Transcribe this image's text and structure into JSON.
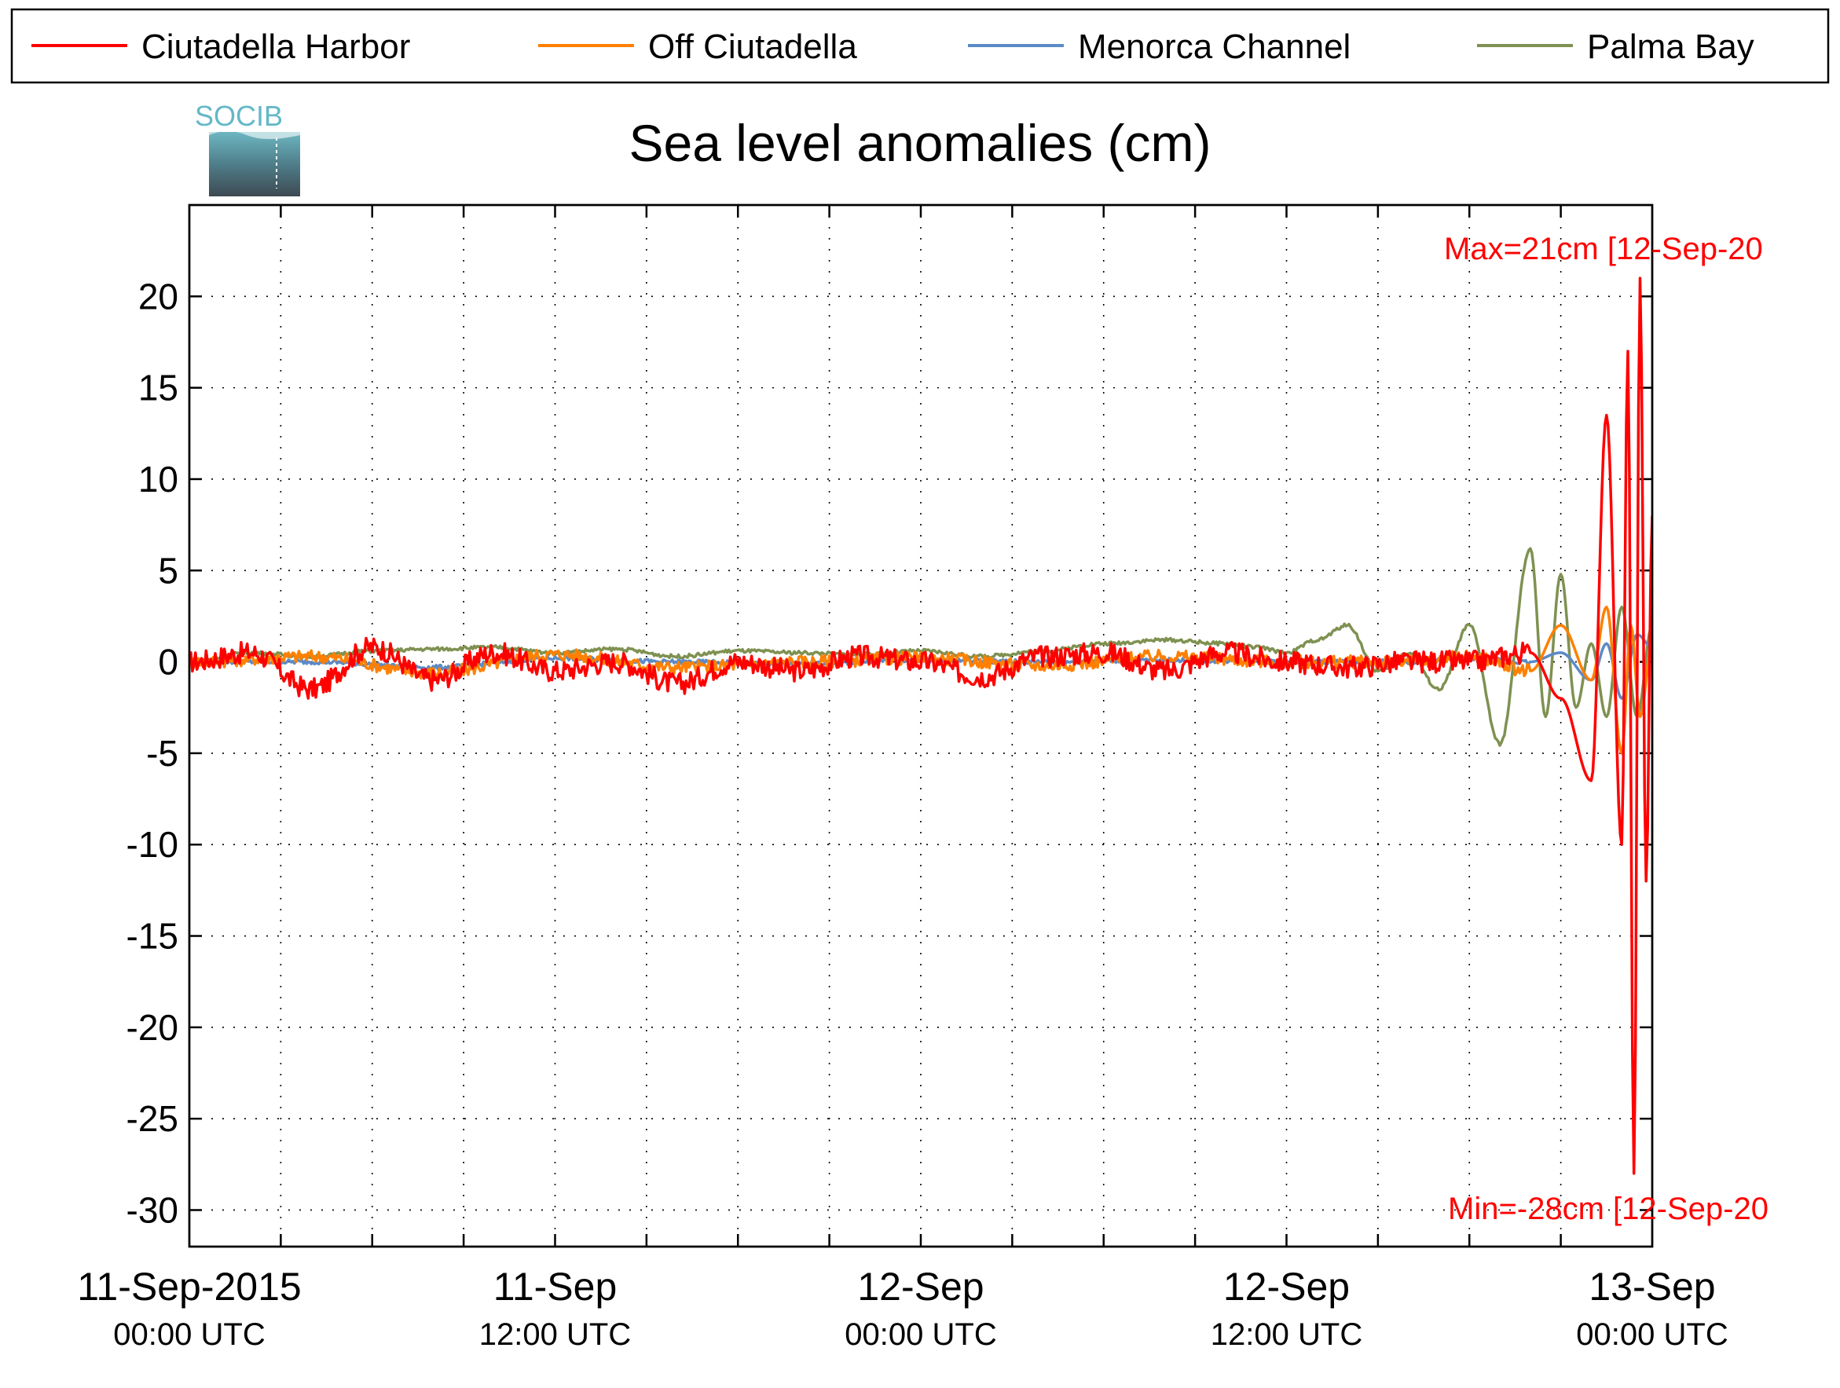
{
  "chart_data": {
    "type": "line",
    "title": "Sea level anomalies (cm)",
    "xlabel": "",
    "ylabel": "",
    "ylim": [
      -32,
      25
    ],
    "yticks": [
      20,
      15,
      10,
      5,
      0,
      -5,
      -10,
      -15,
      -20,
      -25,
      -30
    ],
    "ytick_labels": [
      "20",
      "15",
      "10",
      "5",
      "0",
      "-5",
      "-10",
      "-15",
      "-20",
      "-25",
      "-30"
    ],
    "x_unit": "hours since 11-Sep-2015 00:00 UTC",
    "xlim": [
      0,
      48
    ],
    "xticks": [
      {
        "main": "11-Sep-2015",
        "sub": "00:00 UTC"
      },
      {
        "main": "11-Sep",
        "sub": "12:00 UTC"
      },
      {
        "main": "12-Sep",
        "sub": "00:00 UTC"
      },
      {
        "main": "12-Sep",
        "sub": "12:00 UTC"
      },
      {
        "main": "13-Sep",
        "sub": "00:00 UTC"
      }
    ],
    "grid": true,
    "legend_position": "top",
    "series": [
      {
        "name": "Ciutadella Harbor",
        "color": "#ff0000",
        "x": [
          0,
          2,
          4,
          6,
          8,
          10,
          12,
          14,
          16,
          18,
          20,
          22,
          24,
          26,
          28,
          30,
          32,
          34,
          36,
          38,
          40,
          42,
          44,
          45,
          46,
          46.5,
          47,
          47.2,
          47.4,
          47.6,
          47.8,
          48
        ],
        "y": [
          0,
          0.5,
          -1.5,
          0.8,
          -1,
          0.5,
          -0.5,
          0,
          -1.2,
          0,
          -0.5,
          0.3,
          0,
          -0.8,
          0.3,
          0.5,
          -0.5,
          0.5,
          0,
          -0.3,
          0,
          0,
          0.5,
          -2,
          -6.5,
          13.5,
          -10,
          17,
          -28,
          21,
          -12,
          8
        ]
      },
      {
        "name": "Off Ciutadella",
        "color": "#ff8000",
        "x": [
          0,
          4,
          8,
          12,
          16,
          20,
          24,
          28,
          32,
          36,
          40,
          42,
          44,
          45,
          46,
          46.5,
          47,
          47.3,
          47.6,
          48
        ],
        "y": [
          0,
          0.3,
          -0.6,
          0.4,
          -0.3,
          0,
          0.2,
          -0.2,
          0.3,
          0,
          0,
          0.3,
          -0.5,
          2,
          -1,
          3,
          -5,
          2,
          -3,
          1
        ]
      },
      {
        "name": "Menorca Channel",
        "color": "#5b8ac7",
        "x": [
          0,
          4,
          8,
          12,
          16,
          20,
          24,
          28,
          32,
          36,
          40,
          42,
          44,
          45,
          46,
          46.5,
          47,
          47.5,
          48
        ],
        "y": [
          0,
          0,
          -0.3,
          0.2,
          0,
          -0.1,
          0.1,
          0,
          0.1,
          0,
          0,
          0.2,
          0,
          0.5,
          -1,
          1,
          -2,
          1.5,
          0.8
        ]
      },
      {
        "name": "Palma Bay",
        "color": "#7f9151",
        "x": [
          0,
          2,
          4,
          6,
          8,
          10,
          12,
          14,
          16,
          18,
          20,
          22,
          24,
          26,
          28,
          30,
          32,
          34,
          35,
          36,
          37,
          38,
          39,
          40,
          41,
          42,
          43,
          44,
          44.5,
          45,
          45.5,
          46,
          46.5,
          47,
          47.5,
          48
        ],
        "y": [
          0,
          0.5,
          0.3,
          0.6,
          0.7,
          0.8,
          0.5,
          0.7,
          0.3,
          0.6,
          0.5,
          0.4,
          0.6,
          0.3,
          0.6,
          1,
          1.2,
          1,
          0.8,
          0.5,
          1.2,
          2,
          -0.5,
          0.5,
          -1.5,
          2,
          -4.5,
          6.2,
          -3,
          4.8,
          -2.5,
          1,
          -3,
          3,
          -3,
          2
        ]
      }
    ],
    "annotations": [
      {
        "label": "Max=21cm [12-Sep-20",
        "color": "#ff0000"
      },
      {
        "label": "Min=-28cm [12-Sep-20",
        "color": "#ff0000"
      }
    ],
    "logo_text": "SOCIB"
  }
}
